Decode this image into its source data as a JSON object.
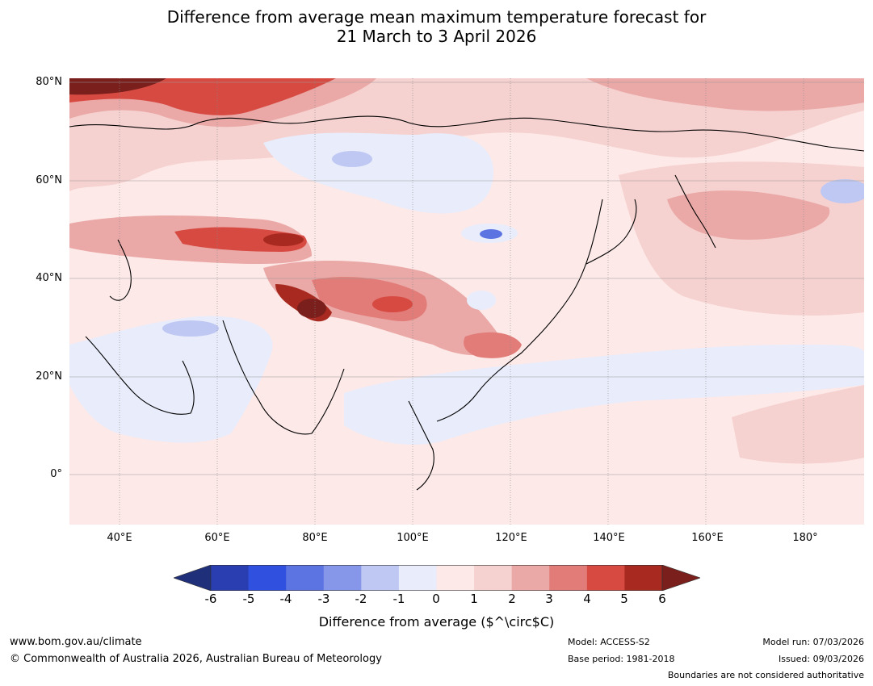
{
  "title": {
    "line1": "Difference from average mean maximum temperature forecast for",
    "line2": "21 March to 3 April 2026"
  },
  "map": {
    "lat_labels": [
      "80°N",
      "60°N",
      "40°N",
      "20°N",
      "0°"
    ],
    "lon_labels": [
      "40°E",
      "60°E",
      "80°E",
      "100°E",
      "120°E",
      "140°E",
      "160°E",
      "180°"
    ],
    "regions": {
      "arctic_nw": "6",
      "central_asia_band": "4",
      "tibet_plateau": "6",
      "china_interior": "3",
      "south_china": "3",
      "siberia_west": "-1",
      "mongolia_spot": "-3",
      "india_west": "-1",
      "maritime_se_asia": "-1",
      "pacific_ne": "2",
      "pacific_se": "1"
    }
  },
  "colorbar": {
    "ticks": [
      "-6",
      "-5",
      "-4",
      "-3",
      "-2",
      "-1",
      "0",
      "1",
      "2",
      "3",
      "4",
      "5",
      "6"
    ],
    "colors": [
      "#1f2f7a",
      "#2a3eb1",
      "#3050e0",
      "#5c74e2",
      "#8696e8",
      "#bfc8f3",
      "#e8ecfb",
      "#fde9e8",
      "#f5d1cf",
      "#eaa8a6",
      "#e27c78",
      "#d64a42",
      "#a8291f",
      "#7a1f1c"
    ],
    "label": "Difference from average ($^\\circ$C)"
  },
  "footer": {
    "url": "www.bom.gov.au/climate",
    "copyright": "© Commonwealth of Australia 2026, Australian Bureau of Meteorology",
    "model": "Model: ACCESS-S2",
    "base_period": "Base period: 1981-2018",
    "model_run": "Model run: 07/03/2026",
    "issued": "Issued: 09/03/2026",
    "boundaries": "Boundaries are not considered authoritative"
  }
}
